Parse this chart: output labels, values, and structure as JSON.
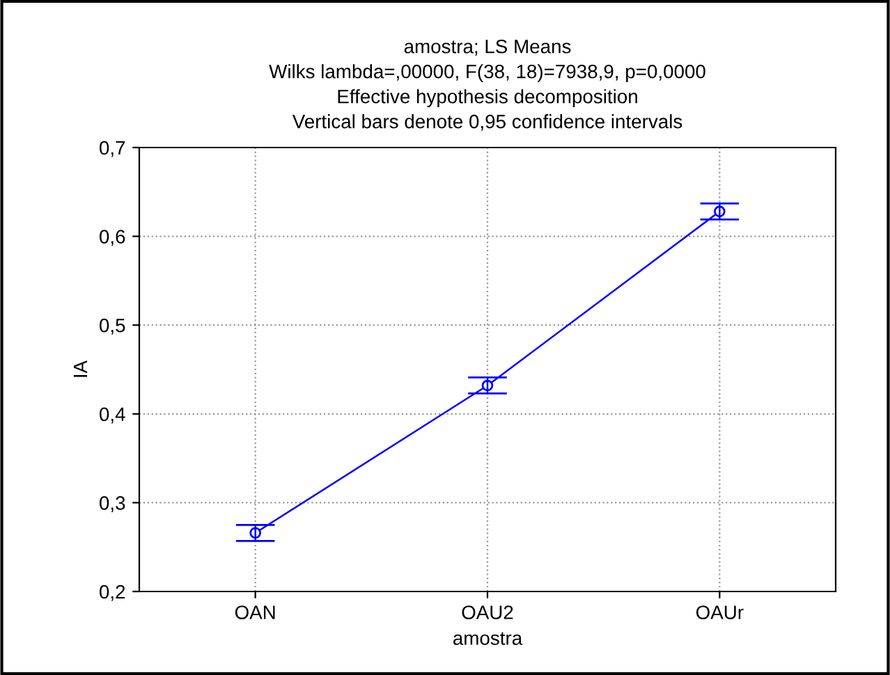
{
  "chart_data": {
    "type": "line",
    "title": "amostra; LS Means\nWilks lambda=,00000, F(38, 18)=7938,9, p=0,0000\nEffective hypothesis decomposition\nVertical bars denote 0,95 confidence intervals",
    "xlabel": "amostra",
    "ylabel": "IA",
    "categories": [
      "OAN",
      "OAU2",
      "OAUr"
    ],
    "series": [
      {
        "color": "#0000ff",
        "values": [
          0.266,
          0.432,
          0.628
        ],
        "errors": [
          0.009,
          0.009,
          0.009
        ]
      }
    ],
    "ylim": [
      0.2,
      0.7
    ],
    "yticks": [
      {
        "value": 0.2,
        "label": "0,2"
      },
      {
        "value": 0.3,
        "label": "0,3"
      },
      {
        "value": 0.4,
        "label": "0,4"
      },
      {
        "value": 0.5,
        "label": "0,5"
      },
      {
        "value": 0.6,
        "label": "0,6"
      },
      {
        "value": 0.7,
        "label": "0,7"
      }
    ],
    "grid": true,
    "marker": "circle",
    "line_style": "solid"
  }
}
